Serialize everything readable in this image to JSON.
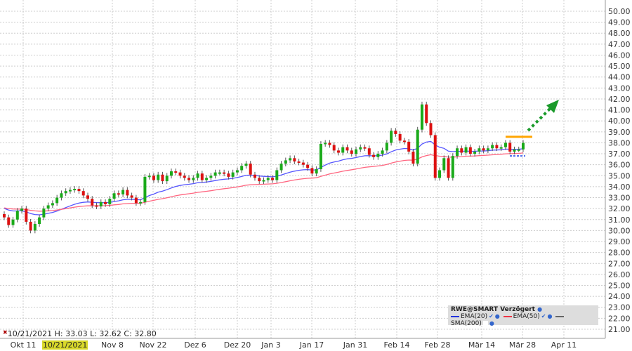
{
  "chart_data": {
    "type": "candlestick",
    "title": "",
    "ylim": [
      20.5,
      50.5
    ],
    "y_ticks": [
      "50.00",
      "49.00",
      "48.00",
      "47.00",
      "46.00",
      "45.00",
      "44.00",
      "43.00",
      "42.00",
      "41.00",
      "40.00",
      "39.00",
      "38.00",
      "37.00",
      "36.00",
      "35.00",
      "34.00",
      "33.00",
      "32.00",
      "31.00",
      "30.00",
      "29.00",
      "28.00",
      "27.00",
      "26.00",
      "25.00",
      "24.00",
      "23.00",
      "22.00",
      "21.00"
    ],
    "x_ticks": [
      "Okt 11",
      "Nov 8",
      "Nov 22",
      "Dez 6",
      "Dez 20",
      "Jan 3",
      "Jan 17",
      "Jan 31",
      "Feb 14",
      "Feb 28",
      "Mär 14",
      "Mär 28",
      "Apr 11"
    ],
    "closes": [
      31.2,
      30.5,
      31.0,
      31.8,
      32.0,
      30.8,
      30.0,
      30.6,
      31.2,
      32.0,
      32.3,
      32.5,
      33.0,
      33.4,
      33.6,
      33.7,
      33.8,
      33.6,
      33.2,
      32.9,
      32.3,
      32.2,
      32.6,
      32.4,
      32.9,
      33.4,
      33.3,
      33.7,
      33.2,
      33.0,
      32.5,
      32.6,
      34.9,
      35.0,
      34.6,
      35.1,
      34.5,
      35.0,
      35.4,
      35.3,
      35.0,
      34.8,
      34.6,
      34.8,
      35.2,
      34.6,
      34.8,
      35.0,
      35.3,
      35.3,
      35.2,
      34.9,
      35.3,
      35.5,
      35.9,
      36.1,
      35.1,
      34.8,
      34.5,
      34.6,
      34.8,
      34.6,
      35.5,
      36.1,
      36.4,
      36.6,
      36.3,
      36.2,
      36.0,
      35.7,
      35.2,
      35.6,
      37.9,
      38.0,
      37.8,
      37.3,
      37.1,
      37.6,
      37.3,
      37.0,
      37.4,
      37.6,
      37.5,
      36.9,
      36.7,
      37.0,
      37.3,
      38.0,
      39.1,
      38.8,
      38.2,
      38.1,
      37.2,
      36.1,
      39.2,
      41.5,
      39.8,
      38.7,
      34.8,
      35.5,
      36.6,
      34.8,
      36.8,
      37.5,
      37.1,
      37.6,
      37.0,
      37.2,
      37.5,
      37.3,
      37.5,
      37.8,
      37.5,
      37.6,
      38.0,
      37.2,
      37.4,
      37.4,
      38.0
    ],
    "series": [
      {
        "name": "EMA(20)",
        "color": "#5555ff",
        "initial": 32.1
      },
      {
        "name": "EMA(50)",
        "color": "#ff6680",
        "initial": 32.1
      }
    ],
    "up_color": "#1aaa1a",
    "down_color": "#dd1111",
    "annotations": {
      "resistance_level": 38.55,
      "support_level": 36.8,
      "resistance_color": "#ffa500",
      "arrow_color": "#1a9a2a",
      "arrow_direction": "up-right"
    }
  },
  "info": {
    "date": "10/21/2021",
    "high": "H: 33.03",
    "low": "L: 32.62",
    "close": "C: 32.80"
  },
  "crosshair_date": "10/21/2021",
  "legend": {
    "title": "RWE@SMART Verzögert",
    "items": [
      "EMA(20)",
      "EMA(50)",
      "SMA(200)"
    ],
    "colors": [
      "#2233dd",
      "#ee3344",
      "#666666"
    ]
  }
}
